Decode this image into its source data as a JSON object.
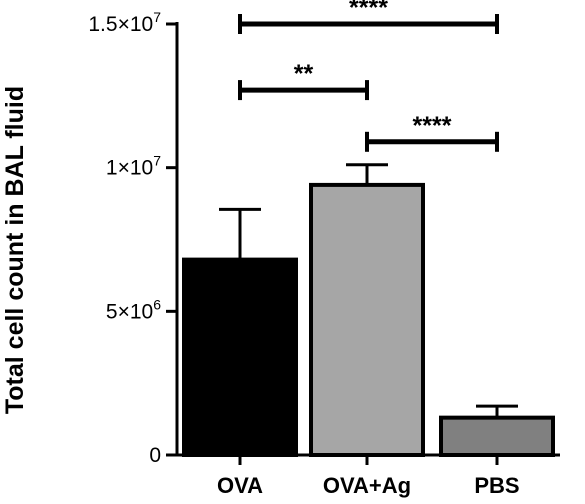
{
  "chart_data": {
    "type": "bar",
    "title": "",
    "xlabel": "",
    "ylabel": "Total cell count in BAL fluid",
    "categories": [
      "OVA",
      "OVA+Ag",
      "PBS"
    ],
    "values": [
      6800000,
      9400000,
      1300000
    ],
    "error": [
      1750000,
      700000,
      400000
    ],
    "colors": [
      "#000000",
      "#a6a6a6",
      "#808080"
    ],
    "ylim": [
      0,
      15000000
    ],
    "yticks": [
      {
        "value": 0,
        "label": "0",
        "sup": ""
      },
      {
        "value": 5000000,
        "label": "5×10",
        "sup": "6"
      },
      {
        "value": 10000000,
        "label": "1×10",
        "sup": "7"
      },
      {
        "value": 15000000,
        "label": "1.5×10",
        "sup": "7"
      }
    ],
    "grid": false,
    "significance": [
      {
        "from": 0,
        "to": 2,
        "y": 15000000,
        "label": "****"
      },
      {
        "from": 0,
        "to": 1,
        "y": 12700000,
        "label": "**"
      },
      {
        "from": 1,
        "to": 2,
        "y": 10900000,
        "label": "****"
      }
    ]
  }
}
